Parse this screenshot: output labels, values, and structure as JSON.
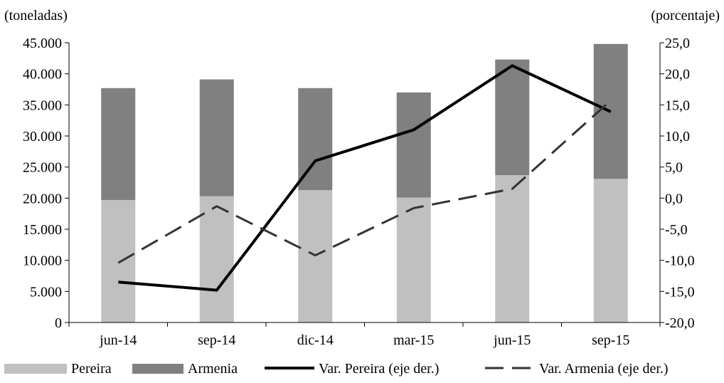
{
  "chart_data": {
    "type": "bar",
    "stacked": true,
    "categories": [
      "jun-14",
      "sep-14",
      "dic-14",
      "mar-15",
      "jun-15",
      "sep-15"
    ],
    "left_axis": {
      "label": "(toneladas)",
      "ylim": [
        0,
        45000
      ],
      "ticks": [
        0,
        5000,
        10000,
        15000,
        20000,
        25000,
        30000,
        35000,
        40000,
        45000
      ],
      "tick_labels": [
        "0",
        "5.000",
        "10.000",
        "15.000",
        "20.000",
        "25.000",
        "30.000",
        "35.000",
        "40.000",
        "45.000"
      ]
    },
    "right_axis": {
      "label": "(porcentaje)",
      "ylim": [
        -20,
        25
      ],
      "ticks": [
        -20,
        -15,
        -10,
        -5,
        0,
        5,
        10,
        15,
        20,
        25
      ],
      "tick_labels": [
        "-20,0",
        "-15,0",
        "-10,0",
        "-5,0",
        "0,0",
        "5,0",
        "10,0",
        "15,0",
        "20,0",
        "25,0"
      ]
    },
    "series": [
      {
        "name": "Pereira",
        "type": "bar",
        "axis": "left",
        "color": "#c0c0c0",
        "values": [
          19700,
          20300,
          21300,
          20100,
          23700,
          23100
        ]
      },
      {
        "name": "Armenia",
        "type": "bar",
        "axis": "left",
        "color": "#808080",
        "values": [
          18000,
          18800,
          16400,
          16900,
          18600,
          21700
        ]
      },
      {
        "name": "Var. Pereira (eje der.)",
        "type": "line",
        "axis": "right",
        "color": "#000000",
        "dash": "solid",
        "values": [
          -13.5,
          -14.8,
          6.0,
          11.0,
          21.3,
          13.9
        ]
      },
      {
        "name": "Var. Armenia (eje der.)",
        "type": "line",
        "axis": "right",
        "color": "#333333",
        "dash": "dashed",
        "values": [
          -10.4,
          -1.3,
          -9.2,
          -1.6,
          1.5,
          15.7
        ]
      }
    ],
    "grid": false,
    "legend_position": "bottom"
  }
}
